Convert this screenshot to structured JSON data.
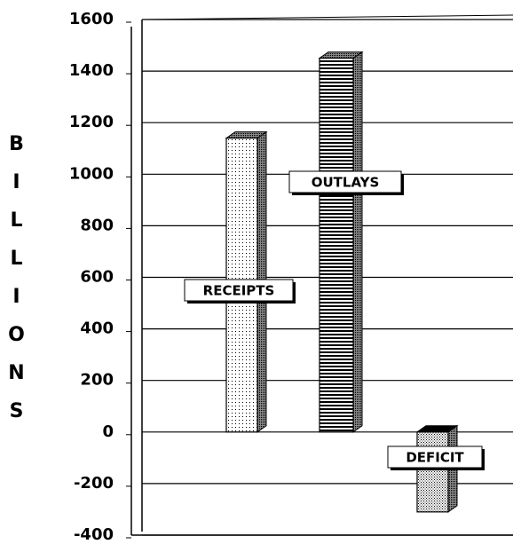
{
  "chart_data": {
    "type": "bar3d",
    "y_label": "BILLIONS",
    "categories": [
      "RECEIPTS",
      "OUTLAYS",
      "DEFICIT"
    ],
    "values": [
      1140,
      1450,
      -310
    ],
    "ylim": [
      -400,
      1600
    ],
    "yticks": [
      -400,
      -200,
      0,
      200,
      400,
      600,
      800,
      1000,
      1200,
      1400,
      1600
    ],
    "grid": true
  }
}
